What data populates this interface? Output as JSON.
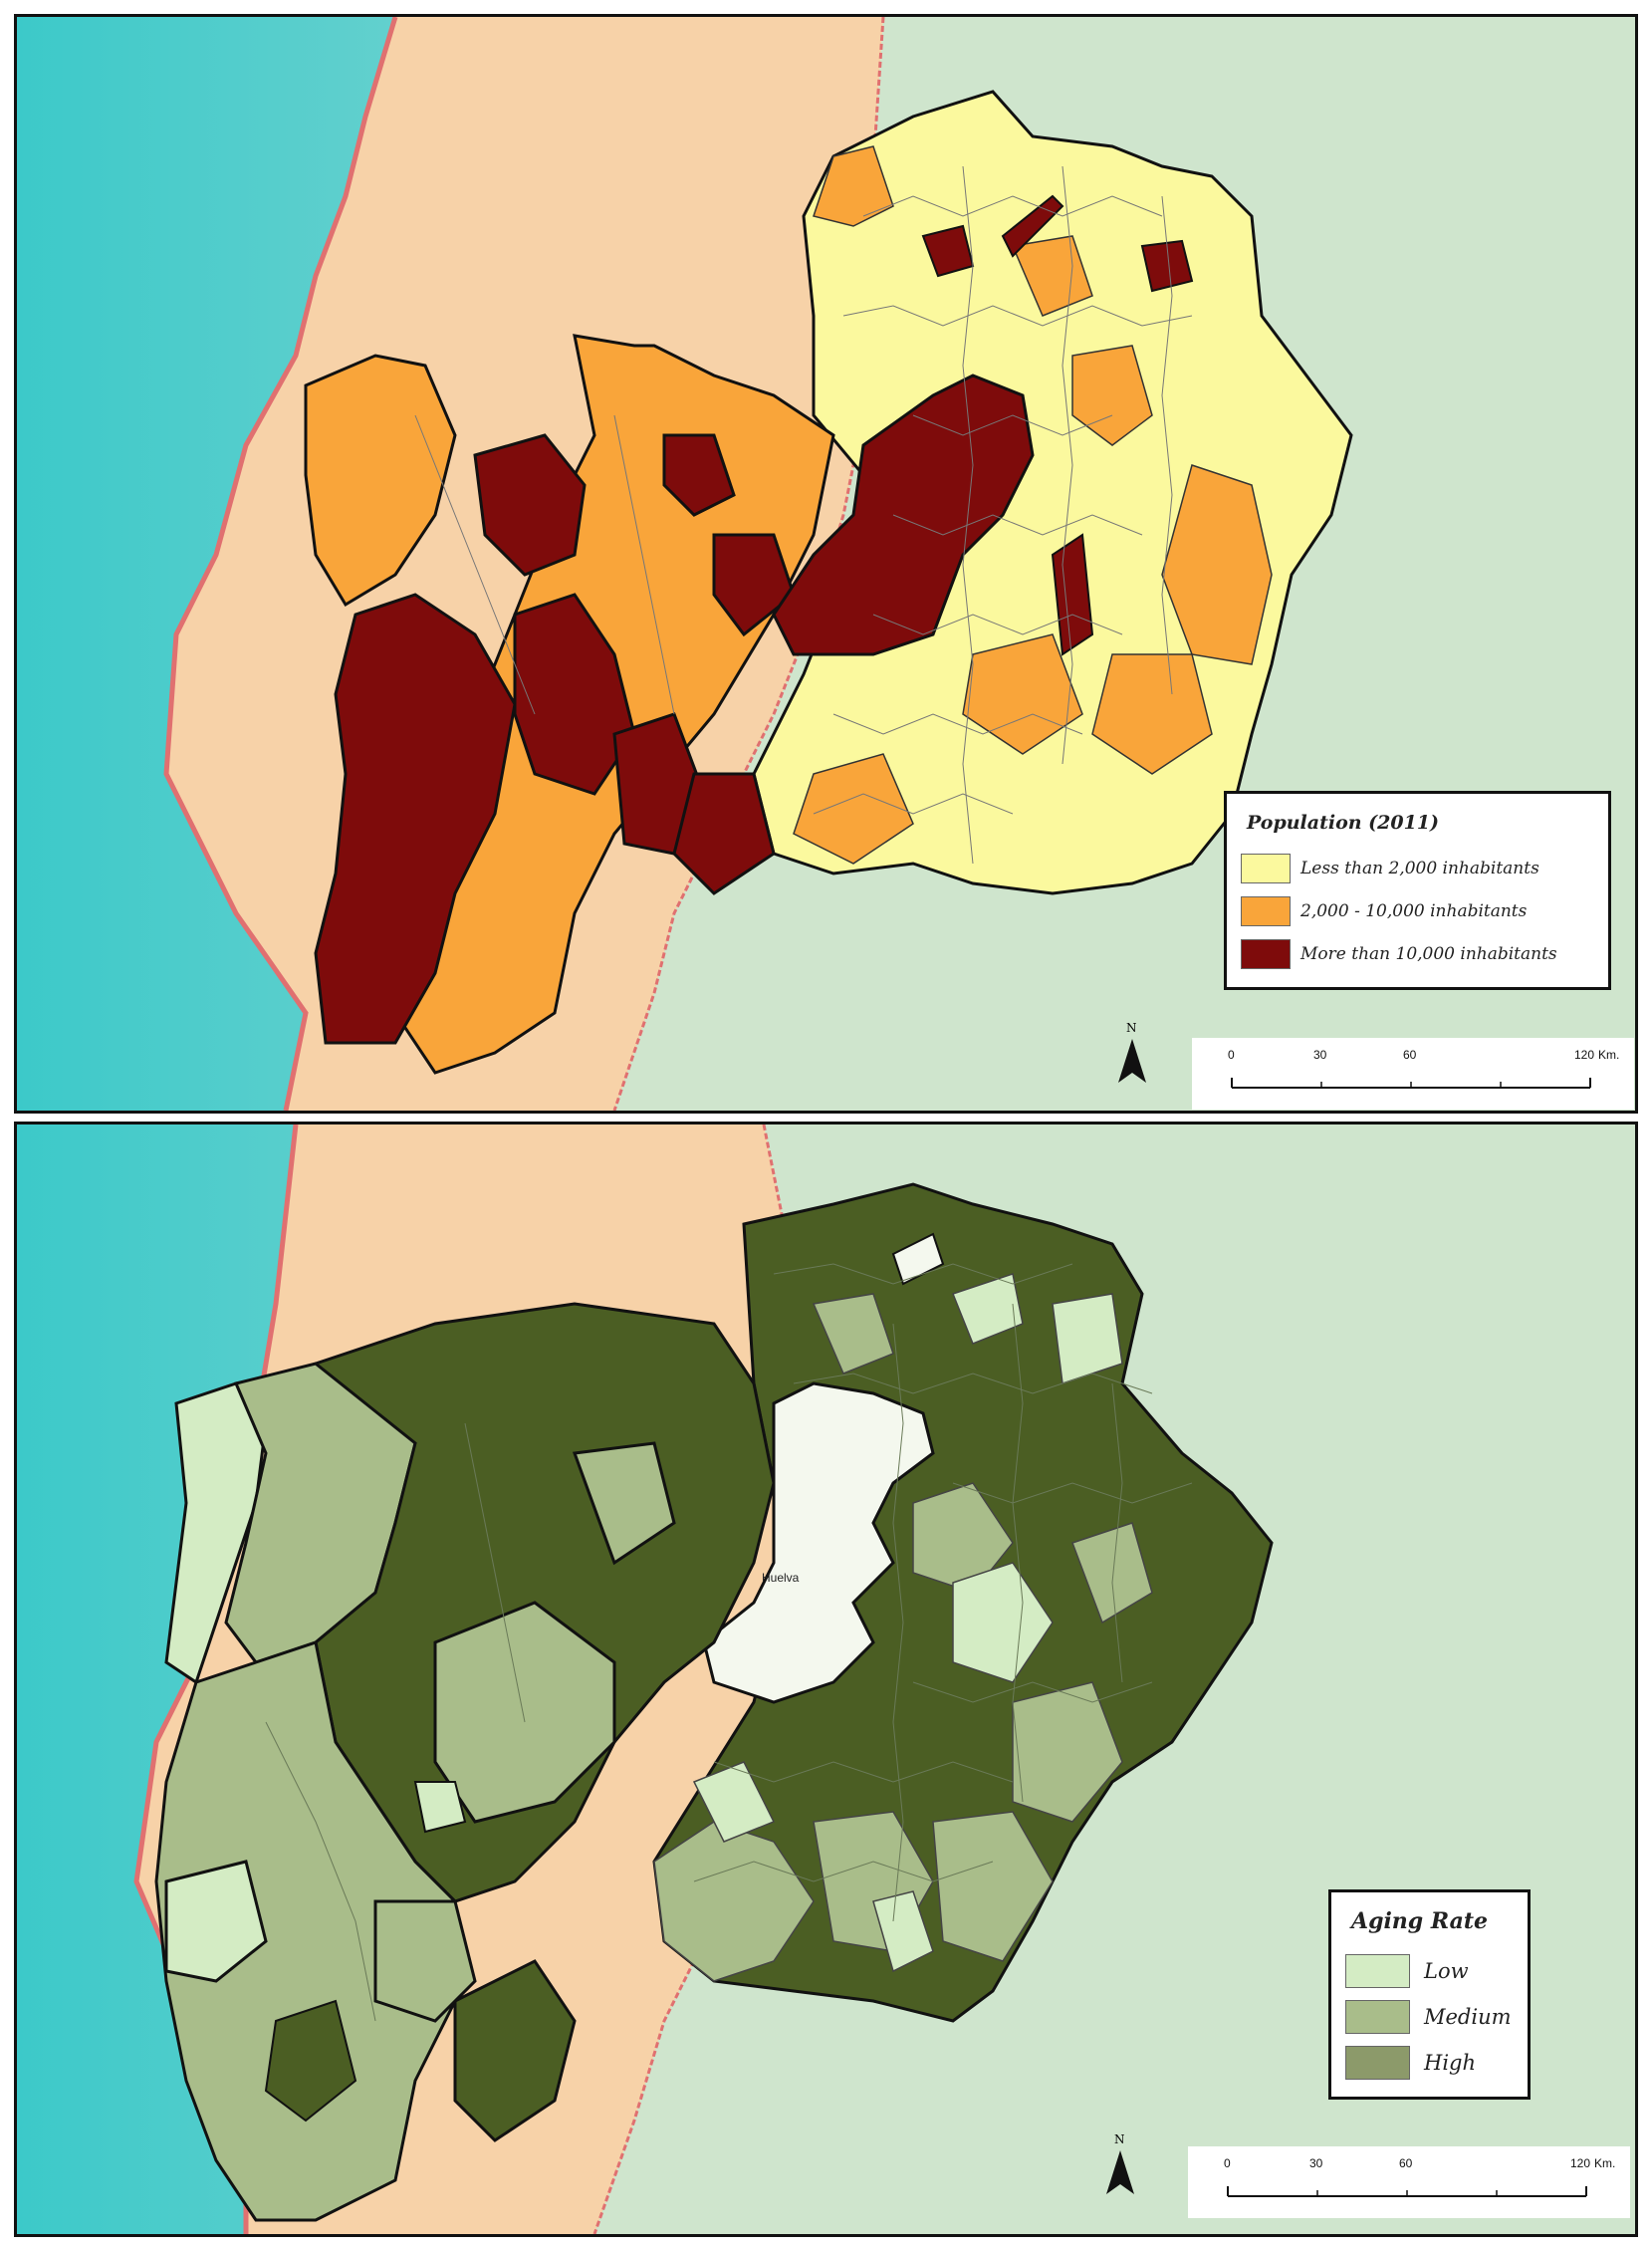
{
  "maps": [
    {
      "legend": {
        "title": "Population (2011)",
        "items": [
          {
            "label": "Less than 2,000 inhabitants",
            "color": "#fbf99e"
          },
          {
            "label": "2,000 - 10,000 inhabitants",
            "color": "#f9a53a"
          },
          {
            "label": "More than 10,000 inhabitants",
            "color": "#7e0b0b"
          }
        ]
      },
      "scale": {
        "ticks": [
          "0",
          "30",
          "60",
          "120"
        ],
        "unit": "Km."
      },
      "north": "N"
    },
    {
      "legend": {
        "title": "Aging Rate",
        "items": [
          {
            "label": "Low",
            "color": "#d4ecc4"
          },
          {
            "label": "Medium",
            "color": "#a9bd8a"
          },
          {
            "label": "High",
            "color": "#4b5e23"
          }
        ]
      },
      "scale": {
        "ticks": [
          "0",
          "30",
          "60",
          "120"
        ],
        "unit": "Km."
      },
      "north": "N",
      "place_label": "Huelva"
    }
  ],
  "colors": {
    "sea_light": "#8fd7d3",
    "sea_deep": "#3fc8c9",
    "portugal_land": "#f7d2a8",
    "spain_land": "#cfe5cd",
    "coast": "#e07070"
  }
}
